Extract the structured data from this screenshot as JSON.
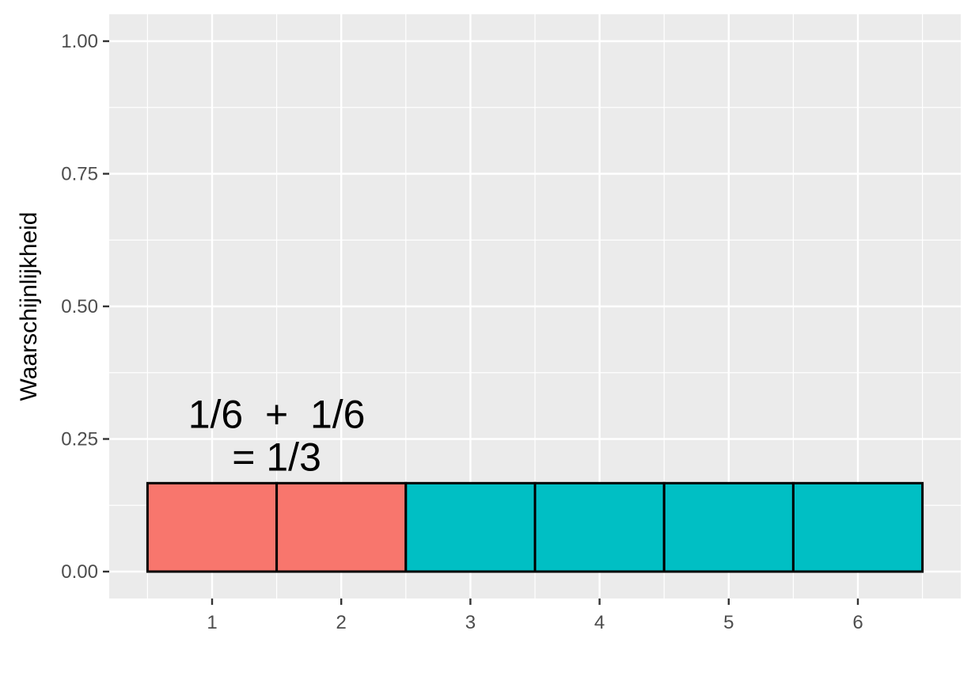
{
  "chart_data": {
    "type": "bar",
    "title": "",
    "xlabel": "",
    "ylabel": "Waarschijnlijkheid",
    "categories": [
      "1",
      "2",
      "3",
      "4",
      "5",
      "6"
    ],
    "values": [
      0.1667,
      0.1667,
      0.1667,
      0.1667,
      0.1667,
      0.1667
    ],
    "bar_colors": [
      "#F8766D",
      "#F8766D",
      "#00BFC4",
      "#00BFC4",
      "#00BFC4",
      "#00BFC4"
    ],
    "ylim": [
      0,
      1
    ],
    "y_ticks": [
      "0.00",
      "0.25",
      "0.50",
      "0.75",
      "1.00"
    ],
    "grid": true,
    "annotation": {
      "lines": [
        "1/6  +  1/6",
        "= 1/3"
      ],
      "anchor_x": 1.5,
      "anchor_y": 0.25
    },
    "colors": {
      "panel_background": "#EBEBEB",
      "gridline": "#FFFFFF",
      "bar_outline": "#000000"
    }
  }
}
